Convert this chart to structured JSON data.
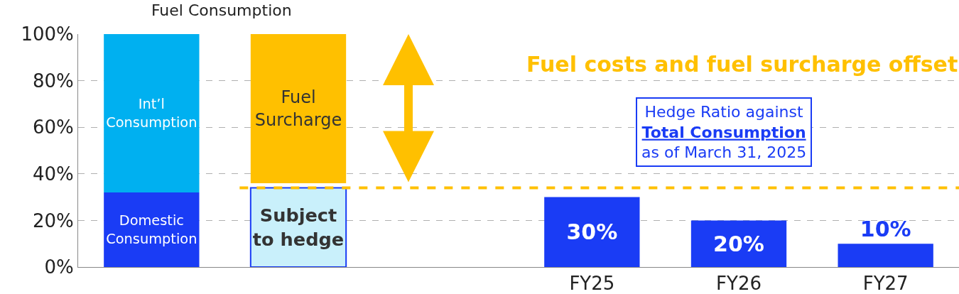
{
  "chart_data": {
    "type": "bar",
    "title": "Fuel Consumption",
    "categories": [
      null,
      null,
      null,
      "FY25",
      "FY26",
      "FY27"
    ],
    "series": [
      {
        "name": "Domestic\nConsumption",
        "color": "#1a3cf5",
        "values": [
          32,
          null,
          null,
          null,
          null,
          null
        ]
      },
      {
        "name": "Int’l\nConsumption",
        "color": "#00b0f0",
        "base": [
          32,
          null,
          null,
          null,
          null,
          null
        ],
        "values": [
          68,
          null,
          null,
          null,
          null,
          null
        ]
      },
      {
        "name": "Subject\nto hedge",
        "color": "#c9f0fb",
        "values": [
          null,
          34,
          null,
          null,
          null,
          null
        ]
      },
      {
        "name": "Fuel\nSurcharge",
        "color": "#ffc000",
        "base": [
          null,
          36,
          null,
          null,
          null,
          null
        ],
        "values": [
          null,
          64,
          null,
          null,
          null,
          null
        ]
      },
      {
        "color": "#1a3cf5",
        "values": [
          null,
          null,
          null,
          30,
          20,
          10
        ],
        "value_labels": [
          null,
          null,
          null,
          "30%",
          "20%",
          "10%"
        ]
      }
    ],
    "ylim": [
      0,
      100
    ],
    "yticks": [
      {
        "value": 0,
        "label": "0%"
      },
      {
        "value": 20,
        "label": "20%"
      },
      {
        "value": 40,
        "label": "40%"
      },
      {
        "value": 60,
        "label": "60%"
      },
      {
        "value": 80,
        "label": "80%"
      },
      {
        "value": 100,
        "label": "100%"
      }
    ],
    "grid": "y",
    "ref_lines": [
      {
        "axis": "y",
        "value": 34,
        "color": "#ffc000",
        "line_style": "dashed"
      }
    ],
    "annotations": [
      "Fuel costs and fuel surcharge offset",
      "Hedge Ratio against\nTotal Consumption\nas of March 31, 2025"
    ]
  }
}
